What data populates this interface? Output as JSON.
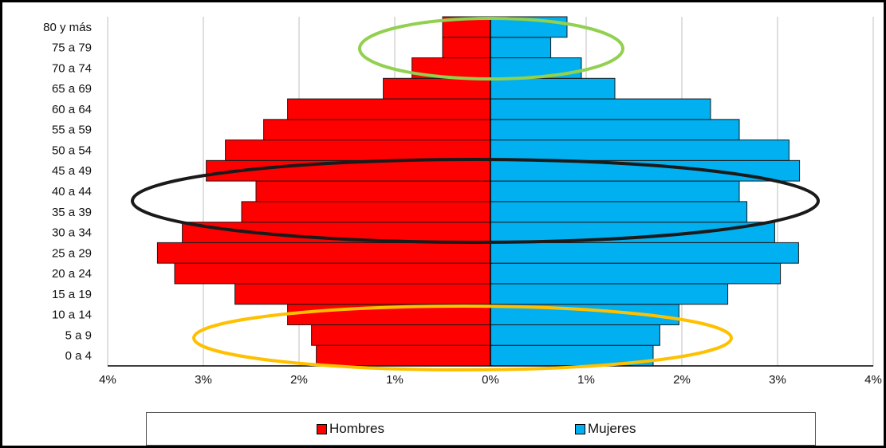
{
  "chart_data": {
    "type": "bar",
    "orientation": "horizontal-pyramid",
    "categories": [
      "0 a 4",
      "5 a 9",
      "10 a 14",
      "15 a 19",
      "20 a 24",
      "25 a 29",
      "30 a 34",
      "35 a 39",
      "40 a 44",
      "45 a 49",
      "50 a 54",
      "55 a 59",
      "60 a 64",
      "65 a 69",
      "70 a 74",
      "75 a 79",
      "80 y más"
    ],
    "series": [
      {
        "name": "Hombres",
        "color": "#ff0000",
        "values": [
          1.82,
          1.87,
          2.12,
          2.67,
          3.3,
          3.48,
          3.22,
          2.6,
          2.45,
          2.97,
          2.77,
          2.37,
          2.12,
          1.12,
          0.82,
          0.5,
          0.5
        ]
      },
      {
        "name": "Mujeres",
        "color": "#00b0f0",
        "values": [
          1.7,
          1.77,
          1.97,
          2.48,
          3.03,
          3.22,
          2.97,
          2.68,
          2.6,
          3.23,
          3.12,
          2.6,
          2.3,
          1.3,
          0.95,
          0.63,
          0.8
        ]
      }
    ],
    "xlim": [
      -4,
      4
    ],
    "x_ticks": [
      "4%",
      "3%",
      "2%",
      "1%",
      "0%",
      "1%",
      "2%",
      "3%",
      "4%"
    ],
    "grid": "vertical",
    "legend": "bottom",
    "annotations": [
      {
        "shape": "ellipse",
        "color": "#92d050",
        "around": "75 a 79 – 80 y más"
      },
      {
        "shape": "ellipse",
        "color": "#1a1a1a",
        "around": "35 a 39 – 45 a 49"
      },
      {
        "shape": "ellipse",
        "color": "#ffc000",
        "around": "0 a 4 – 10 a 14"
      }
    ]
  }
}
